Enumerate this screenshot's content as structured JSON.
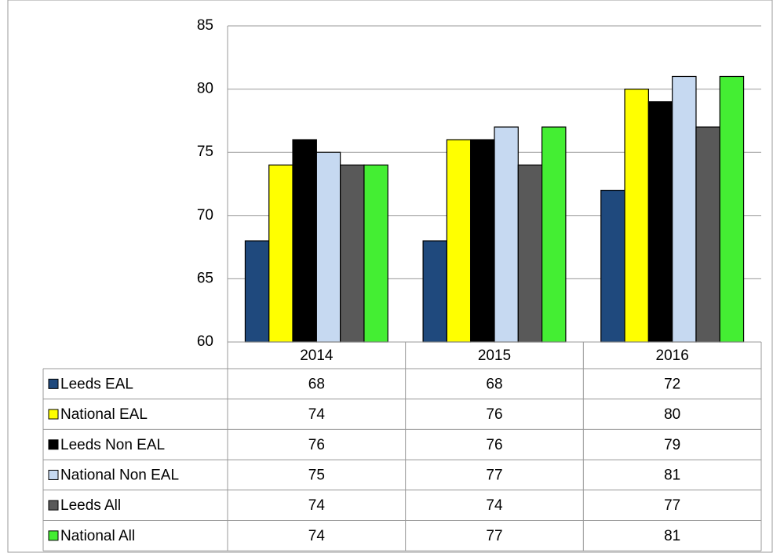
{
  "chart_data": {
    "type": "bar",
    "categories": [
      "2014",
      "2015",
      "2016"
    ],
    "series": [
      {
        "name": "Leeds EAL",
        "color": "#1f497d",
        "values": [
          68,
          68,
          72
        ]
      },
      {
        "name": "National EAL",
        "color": "#ffff00",
        "values": [
          74,
          76,
          80
        ]
      },
      {
        "name": "Leeds Non EAL",
        "color": "#000000",
        "values": [
          76,
          76,
          79
        ]
      },
      {
        "name": "National Non EAL",
        "color": "#c6d9f1",
        "values": [
          75,
          77,
          81
        ]
      },
      {
        "name": "Leeds All",
        "color": "#595959",
        "values": [
          74,
          74,
          77
        ]
      },
      {
        "name": "National All",
        "color": "#44ee33",
        "values": [
          74,
          77,
          81
        ]
      }
    ],
    "ylim": [
      60,
      85
    ],
    "yticks": [
      60,
      65,
      70,
      75,
      80,
      85
    ],
    "grid": true
  }
}
